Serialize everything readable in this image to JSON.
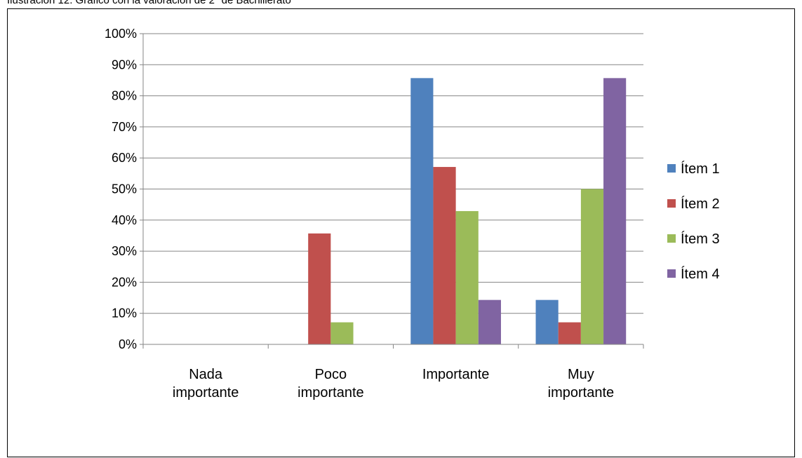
{
  "caption": "Ilustración 12. Gráfico con la valoración de 2º de Bachillerato",
  "chart_data": {
    "type": "bar",
    "title": "",
    "xlabel": "",
    "ylabel": "",
    "categories": [
      [
        "Nada",
        "importante"
      ],
      [
        "Poco",
        "importante"
      ],
      [
        "Importante"
      ],
      [
        "Muy",
        "importante"
      ]
    ],
    "series": [
      {
        "name": "Ítem 1",
        "color": "#4F81BD",
        "values": [
          0,
          0,
          85.7,
          14.3
        ]
      },
      {
        "name": "Ítem 2",
        "color": "#C0504D",
        "values": [
          0,
          35.7,
          57.1,
          7.1
        ]
      },
      {
        "name": "Ítem 3",
        "color": "#9BBB59",
        "values": [
          0,
          7.1,
          42.9,
          50
        ]
      },
      {
        "name": "Ítem 4",
        "color": "#8064A2",
        "values": [
          0,
          0,
          14.3,
          85.7
        ]
      }
    ],
    "ylim": [
      0,
      100
    ],
    "yticks": [
      "0%",
      "10%",
      "20%",
      "30%",
      "40%",
      "50%",
      "60%",
      "70%",
      "80%",
      "90%",
      "100%"
    ],
    "grid": true,
    "legend_position": "right"
  }
}
